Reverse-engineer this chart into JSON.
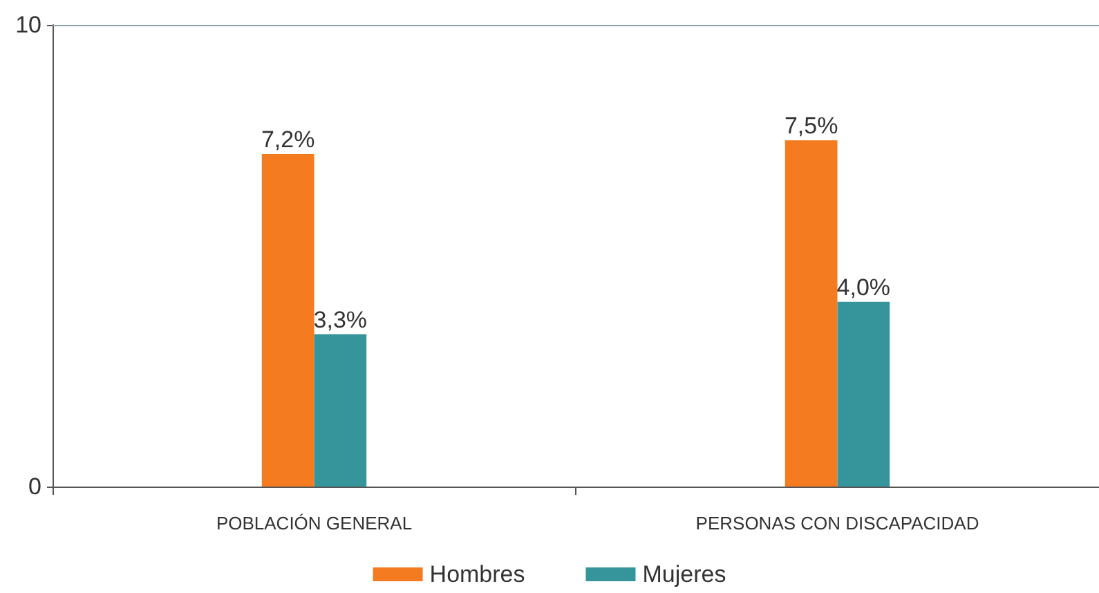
{
  "chart_data": {
    "type": "bar",
    "categories": [
      "POBLACIÓN GENERAL",
      "PERSONAS CON DISCAPACIDAD"
    ],
    "series": [
      {
        "name": "Hombres",
        "color": "#f47b20",
        "values": [
          7.2,
          7.5
        ],
        "value_labels": [
          "7,2%",
          "7,5%"
        ]
      },
      {
        "name": "Mujeres",
        "color": "#36959a",
        "values": [
          3.3,
          4.0
        ],
        "value_labels": [
          "3,3%",
          "4,0%"
        ]
      }
    ],
    "ylim": [
      0,
      10
    ],
    "yticks": [
      0,
      10
    ],
    "legend": "bottom"
  }
}
